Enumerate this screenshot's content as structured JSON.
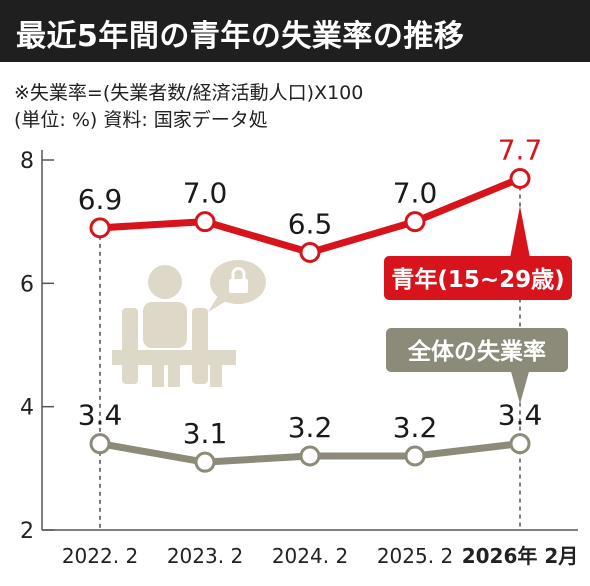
{
  "header": {
    "title": "最近5年間の青年の失業率の推移"
  },
  "notes": {
    "formula": "※失業率=(失業者数/経済活動人口)X100",
    "unit_source": "(単位: %) 資料: 国家データ処"
  },
  "chart_data": {
    "type": "line",
    "categories": [
      "2022. 2",
      "2023. 2",
      "2024. 2",
      "2025. 2",
      "2026年  2月"
    ],
    "ylim": [
      2,
      8
    ],
    "yticks": [
      "2",
      "4",
      "6",
      "8"
    ],
    "grid": false,
    "series": [
      {
        "name": "青年(15~29歳)",
        "values": [
          6.9,
          7.0,
          6.5,
          7.0,
          7.7
        ],
        "labels": [
          "6.9",
          "7.0",
          "6.5",
          "7.0",
          "7.7"
        ],
        "color": "#d7141c"
      },
      {
        "name": "全体の失業率",
        "values": [
          3.4,
          3.1,
          3.2,
          3.2,
          3.4
        ],
        "labels": [
          "3.4",
          "3.1",
          "3.2",
          "3.2",
          "3.4"
        ],
        "color": "#8c8a78"
      }
    ],
    "icon": "person-at-desk-icon",
    "colors": {
      "title_bg": "#1f1f1f",
      "youth": "#d7141c",
      "overall": "#8c8a78",
      "illustration": "#ded8c8"
    }
  }
}
